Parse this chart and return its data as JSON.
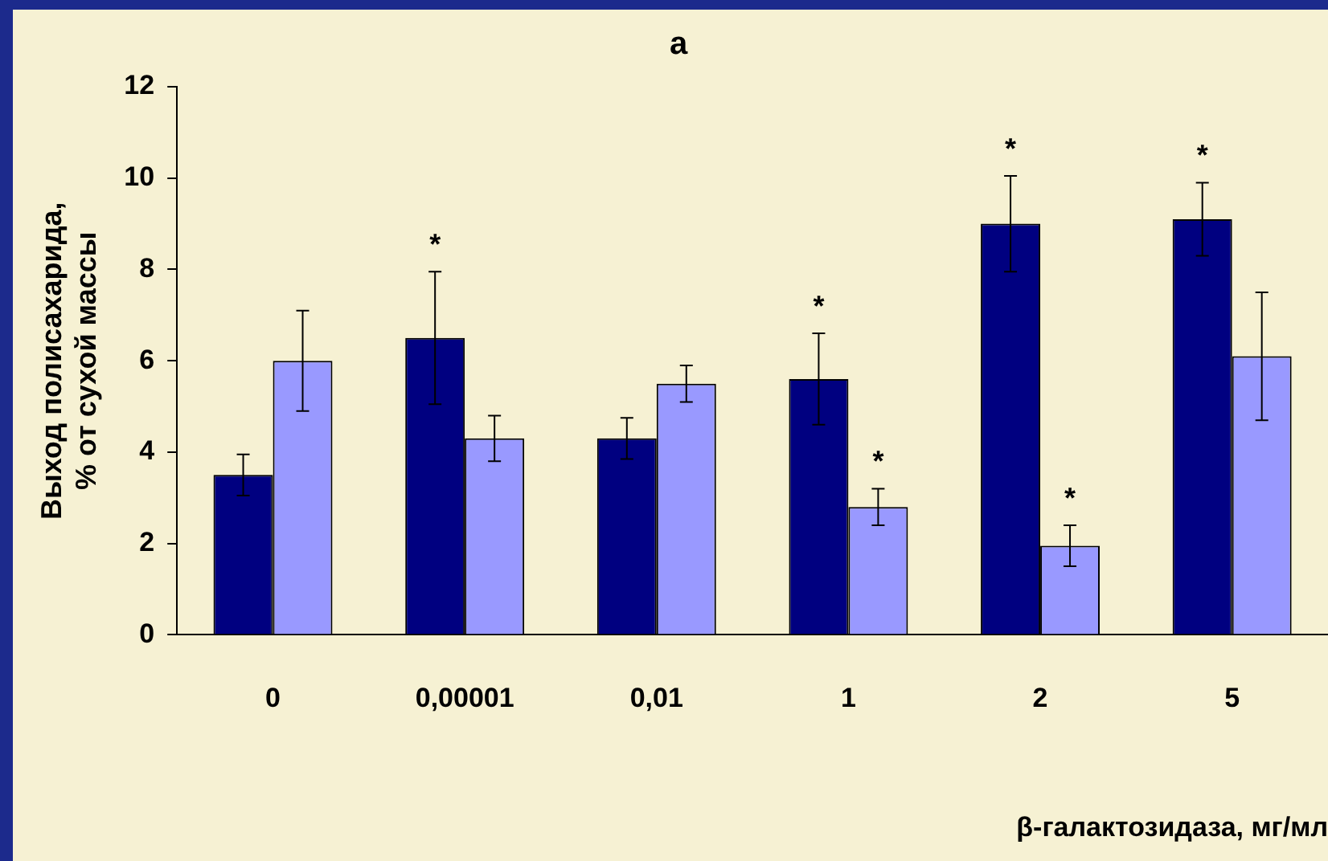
{
  "chart_data": {
    "type": "bar",
    "title": "a",
    "xlabel": "β-галактозидаза, мг/мл",
    "ylabel": "Выход полисахарида,\n% от сухой массы",
    "categories": [
      "0",
      "0,00001",
      "0,01",
      "1",
      "2",
      "5"
    ],
    "series": [
      {
        "color": "#000080",
        "values": [
          3.5,
          6.5,
          4.3,
          5.6,
          9.0,
          9.1
        ],
        "errors": [
          0.45,
          1.45,
          0.45,
          1.0,
          1.05,
          0.8
        ]
      },
      {
        "color": "#9999ff",
        "values": [
          6.0,
          4.3,
          5.5,
          2.8,
          1.95,
          6.1
        ],
        "errors": [
          1.1,
          0.5,
          0.4,
          0.4,
          0.45,
          1.4
        ]
      }
    ],
    "ylim": [
      0,
      12
    ],
    "yticks": [
      0,
      2,
      4,
      6,
      8,
      10,
      12
    ],
    "grid": false,
    "legend": false,
    "annotations": [
      {
        "text": "*",
        "x": "0,00001",
        "y": 6.5
      },
      {
        "text": "*",
        "x": "1",
        "y": 5.6
      },
      {
        "text": "*",
        "x": "1",
        "y": 2.8
      },
      {
        "text": "*",
        "x": "2",
        "y": 9.0
      },
      {
        "text": "*",
        "x": "2",
        "y": 1.95
      },
      {
        "text": "*",
        "x": "5",
        "y": 9.1
      }
    ]
  }
}
